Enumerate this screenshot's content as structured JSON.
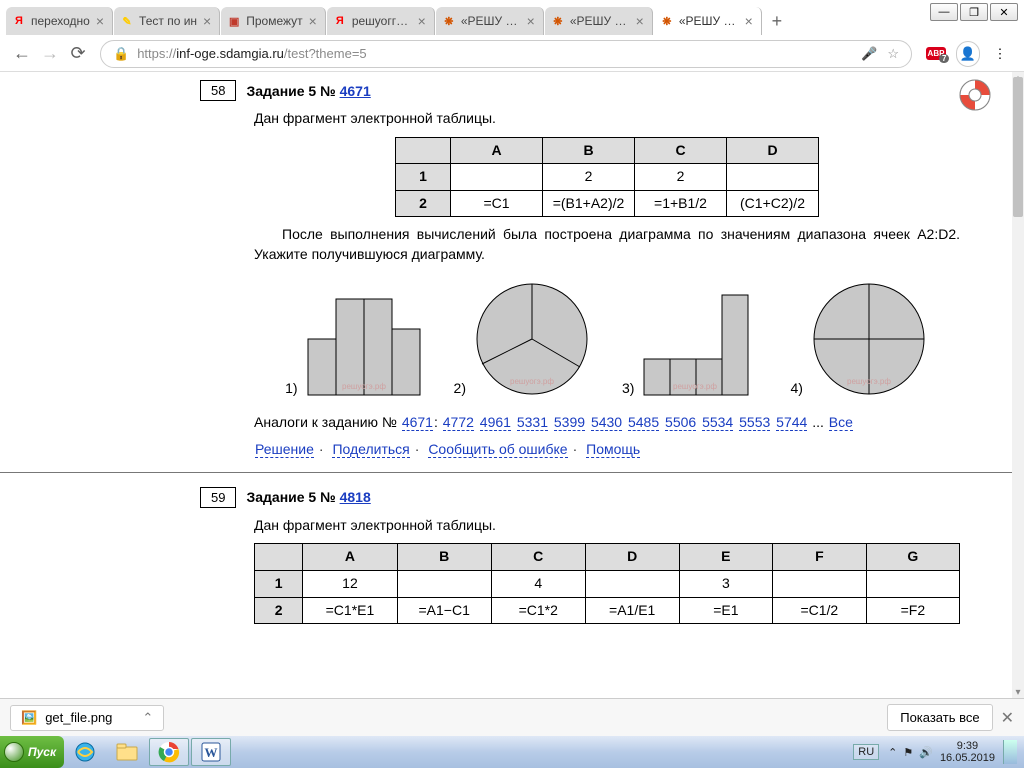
{
  "window": {
    "min": "—",
    "max": "❐",
    "close": "✕"
  },
  "tabs": [
    {
      "fav_color": "#ff0000",
      "fav_text": "Я",
      "label": "переходно",
      "active": false
    },
    {
      "fav_color": "#ffcc00",
      "fav_text": "✎",
      "label": "Тест по ин",
      "active": false
    },
    {
      "fav_color": "#c0392b",
      "fav_text": "▣",
      "label": "Промежут",
      "active": false
    },
    {
      "fav_color": "#ff0000",
      "fav_text": "Я",
      "label": "решуоггэ и",
      "active": false
    },
    {
      "fav_color": "#d35400",
      "fav_text": "❋",
      "label": "«РЕШУ ОГ",
      "active": false
    },
    {
      "fav_color": "#d35400",
      "fav_text": "❋",
      "label": "«РЕШУ ОГ",
      "active": false
    },
    {
      "fav_color": "#d35400",
      "fav_text": "❋",
      "label": "«РЕШУ ОГ",
      "active": true
    }
  ],
  "address": {
    "scheme": "https://",
    "host": "inf-oge.sdamgia.ru",
    "path": "/test?theme=5"
  },
  "abp_badge": "7",
  "task58": {
    "num": "58",
    "title": "Задание 5 № ",
    "link": "4671",
    "p1": "Дан фрагмент электронной таблицы.",
    "table": {
      "cols": [
        "A",
        "B",
        "C",
        "D"
      ],
      "rows": [
        [
          "1",
          "",
          "2",
          "2",
          ""
        ],
        [
          "2",
          "=C1",
          "=(B1+A2)/2",
          "=1+B1/2",
          "(C1+C2)/2"
        ]
      ]
    },
    "p2": "После выполнения вычислений была построена диаграмма по значениям диапазона ячеек A2:D2. Укажите получившуюся диаграмму.",
    "opts": [
      "1)",
      "2)",
      "3)",
      "4)"
    ],
    "analogs_pre": "Аналоги к заданию № ",
    "analogs_main": "4671",
    "analogs": [
      "4772",
      "4961",
      "5331",
      "5399",
      "5430",
      "5485",
      "5506",
      "5534",
      "5553",
      "5744"
    ],
    "analogs_more": "...",
    "analogs_all": "Все",
    "actions": {
      "solution": "Решение",
      "share": "Поделиться",
      "report": "Сообщить об ошибке",
      "help": "Помощь"
    }
  },
  "task59": {
    "num": "59",
    "title": "Задание 5 № ",
    "link": "4818",
    "p1": "Дан фрагмент электронной таблицы.",
    "table": {
      "cols": [
        "A",
        "B",
        "C",
        "D",
        "E",
        "F",
        "G"
      ],
      "rows": [
        [
          "1",
          "12",
          "",
          "4",
          "",
          "3",
          "",
          ""
        ],
        [
          "2",
          "=C1*E1",
          "=A1−C1",
          "=C1*2",
          "=A1/E1",
          "=E1",
          "=C1/2",
          "=F2"
        ]
      ]
    }
  },
  "chart_fill": "#c8c8c8",
  "watermark": "решуогэ.рф",
  "download": {
    "file": "get_file.png",
    "showall": "Показать все"
  },
  "tray": {
    "lang": "RU",
    "time": "9:39",
    "date": "16.05.2019"
  },
  "start": "Пуск"
}
